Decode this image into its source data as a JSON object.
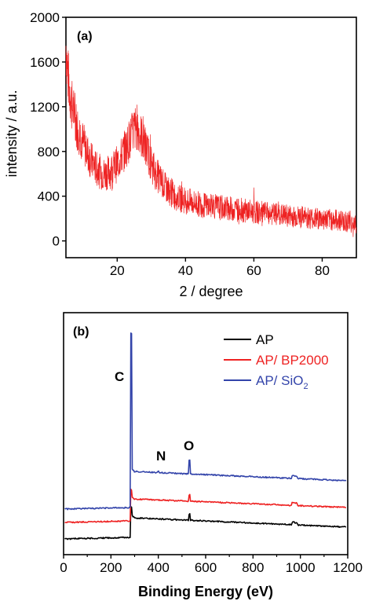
{
  "chart_data": [
    {
      "panel_label": "(a)",
      "type": "line",
      "xlabel": "2 / degree",
      "ylabel": "intensity / a.u.",
      "xlim": [
        5,
        90
      ],
      "ylim": [
        -150,
        2000
      ],
      "xticks": [
        20,
        40,
        60,
        80
      ],
      "yticks": [
        0,
        400,
        800,
        1200,
        1600,
        2000
      ],
      "line_color": "#ee2222",
      "envelope": {
        "x": [
          5,
          5.5,
          6.5,
          8,
          10,
          12,
          14,
          16,
          18,
          20,
          22,
          24,
          25,
          26,
          27,
          29,
          31,
          34,
          37,
          40,
          45,
          50,
          55,
          60,
          65,
          70,
          75,
          80,
          85,
          88,
          90
        ],
        "y": [
          1750,
          1500,
          1250,
          1050,
          880,
          740,
          640,
          600,
          620,
          690,
          800,
          930,
          1000,
          1020,
          940,
          780,
          620,
          480,
          400,
          360,
          320,
          300,
          280,
          260,
          240,
          225,
          210,
          195,
          185,
          170,
          140
        ]
      }
    },
    {
      "panel_label": "(b)",
      "type": "line",
      "xlabel": "Binding Energy (eV)",
      "ylabel": "",
      "xlim": [
        0,
        1200
      ],
      "xticks": [
        0,
        200,
        400,
        600,
        800,
        1000,
        1200
      ],
      "legend_position": "top-right",
      "peak_annotations": [
        {
          "text": "C",
          "x": 285
        },
        {
          "text": "N",
          "x": 400
        },
        {
          "text": "O",
          "x": 532
        }
      ],
      "series": [
        {
          "name": "AP",
          "color": "#000000"
        },
        {
          "name": "AP/ BP2000",
          "color": "#ee2222"
        },
        {
          "name_main": "AP/ SiO",
          "name_sub": "2",
          "color": "#3344aa"
        }
      ]
    }
  ]
}
